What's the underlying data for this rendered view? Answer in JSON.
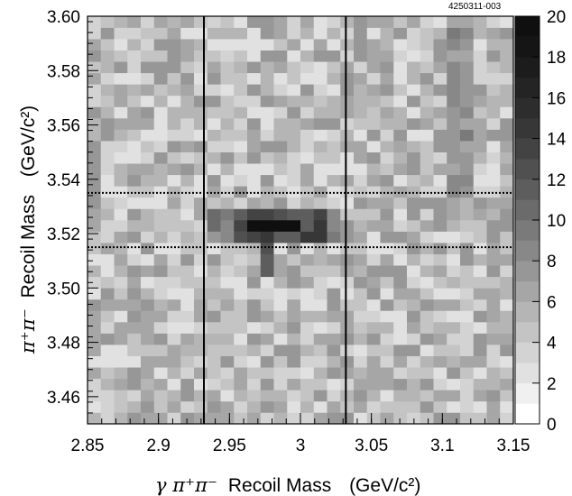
{
  "chart_data": {
    "type": "heatmap",
    "figure_id": "4250311-003",
    "x_axis": {
      "label_symbols": "γ π⁺π⁻",
      "label_text": "Recoil Mass",
      "label_unit": "(GeV/c²)",
      "range": [
        2.85,
        3.15
      ],
      "ticks": [
        "2.85",
        "2.9",
        "2.95",
        "3",
        "3.05",
        "3.1",
        "3.15"
      ],
      "bins": 32
    },
    "y_axis": {
      "label_symbols": "π⁺π⁻",
      "label_text": "Recoil Mass",
      "label_unit": "(GeV/c²)",
      "range": [
        3.45,
        3.6
      ],
      "ticks": [
        "3.46",
        "3.48",
        "3.50",
        "3.52",
        "3.54",
        "3.56",
        "3.58",
        "3.60"
      ],
      "bins": 36
    },
    "colorbar": {
      "range": [
        0,
        20
      ],
      "ticks": [
        "0",
        "2",
        "4",
        "6",
        "8",
        "10",
        "12",
        "14",
        "16",
        "18",
        "20"
      ],
      "colors": [
        "#ffffff",
        "#f0f0f0",
        "#e1e1e1",
        "#d3d3d3",
        "#c4c4c4",
        "#b5b5b5",
        "#a6a6a6",
        "#979797",
        "#888888",
        "#7a7a7a",
        "#6b6b6b",
        "#5d5d5d",
        "#505050",
        "#434343",
        "#373737",
        "#2d2d2d",
        "#242424",
        "#1c1c1c",
        "#151515",
        "#0f0f0f"
      ]
    },
    "vertical_lines_x": [
      2.932,
      3.032
    ],
    "horizontal_dotted_lines_y": [
      3.515,
      3.535
    ],
    "background_level": 5,
    "hot_regions": [
      {
        "x_range": [
          2.965,
          3.0
        ],
        "y_range": [
          3.52,
          3.525
        ],
        "value": 19
      },
      {
        "x_range": [
          2.955,
          3.015
        ],
        "y_range": [
          3.515,
          3.53
        ],
        "value": 13
      },
      {
        "x_range": [
          2.93,
          3.03
        ],
        "y_range": [
          3.515,
          3.53
        ],
        "value": 9
      },
      {
        "x_range": [
          2.975,
          2.985
        ],
        "y_range": [
          3.505,
          3.515
        ],
        "value": 12
      },
      {
        "x_range": [
          3.105,
          3.125
        ],
        "y_range": [
          3.535,
          3.6
        ],
        "value": 8
      }
    ],
    "grid": false,
    "legend": "colorbar-right"
  }
}
